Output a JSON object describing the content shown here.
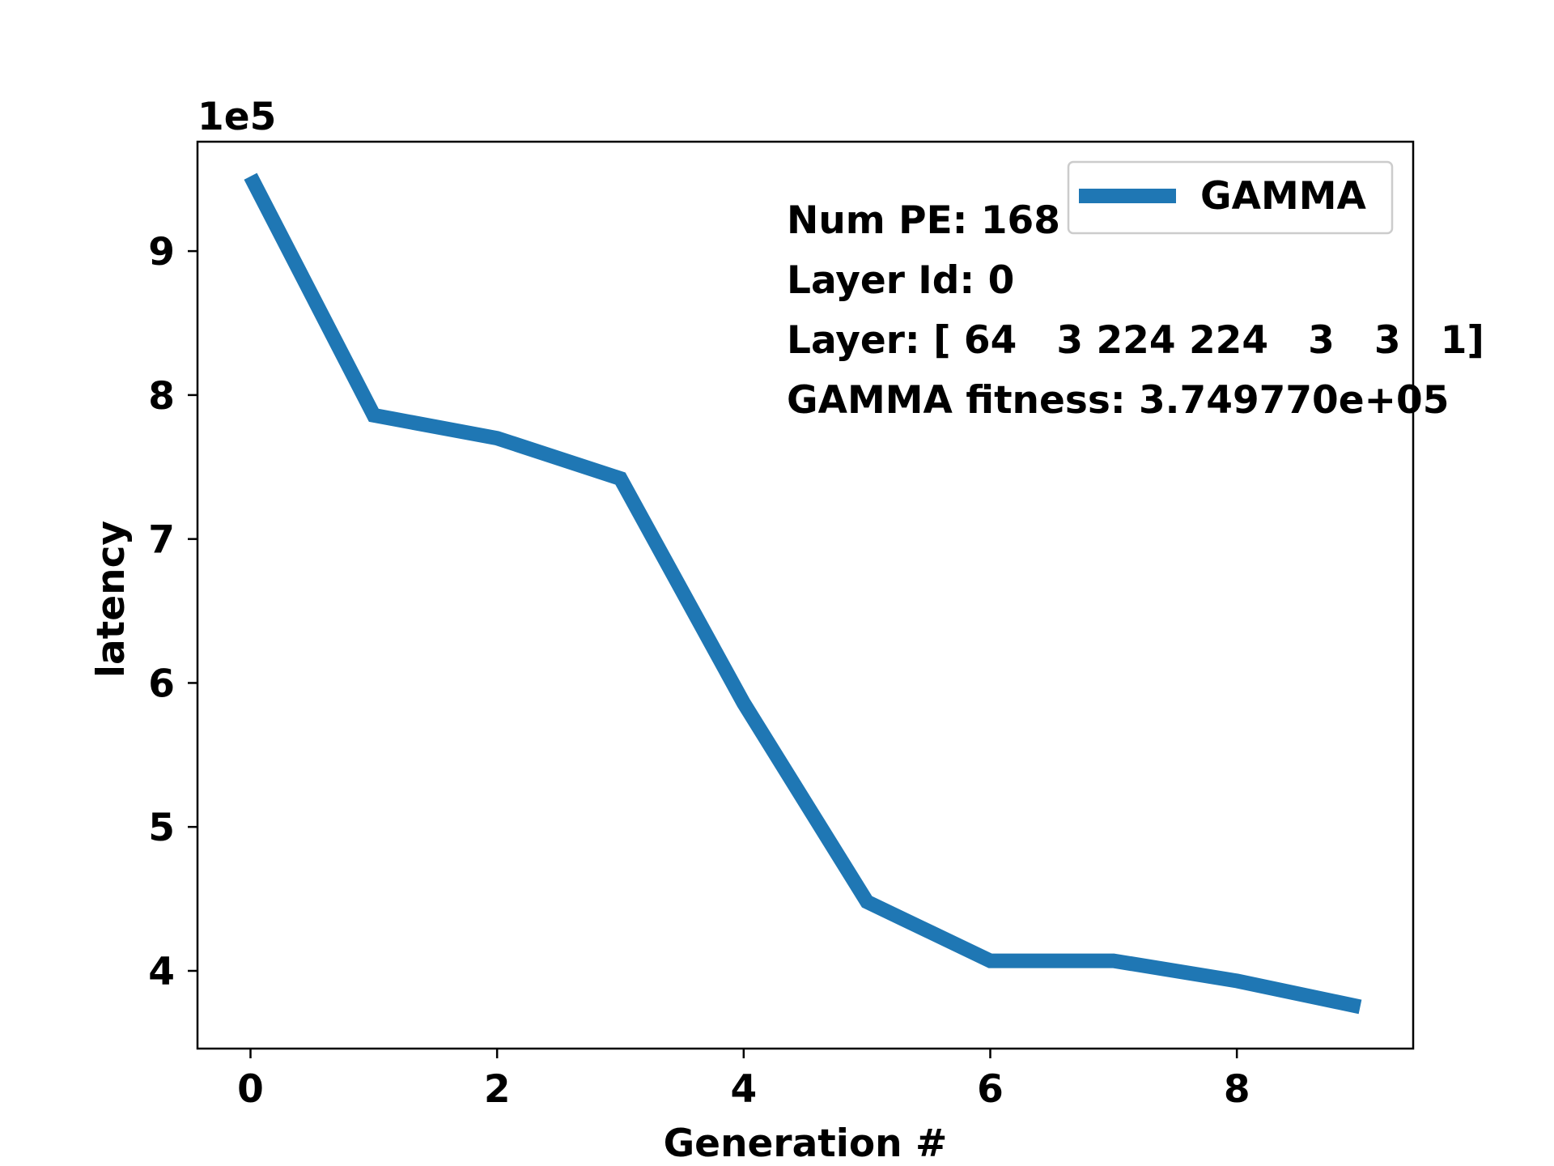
{
  "chart_data": {
    "type": "line",
    "title": "",
    "xlabel": "Generation #",
    "ylabel": "latency",
    "y_offset_label": "1e5",
    "xlim": [
      -0.43,
      9.43
    ],
    "ylim": [
      3.46,
      9.76
    ],
    "x_ticks": [
      0,
      2,
      4,
      6,
      8
    ],
    "y_ticks": [
      4,
      5,
      6,
      7,
      8,
      9
    ],
    "grid": false,
    "legend_position": "upper right",
    "series": [
      {
        "name": "GAMMA",
        "color": "#1f77b4",
        "x": [
          0,
          1,
          2,
          3,
          4,
          5,
          6,
          7,
          8,
          9
        ],
        "y": [
          9.52,
          7.86,
          7.7,
          7.42,
          5.86,
          4.48,
          4.07,
          4.07,
          3.93,
          3.75
        ]
      }
    ],
    "annotations": [
      "Num PE: 168",
      "Layer Id: 0",
      "Layer: [ 64   3 224 224   3   3   1]",
      "GAMMA fitness: 3.749770e+05"
    ]
  }
}
